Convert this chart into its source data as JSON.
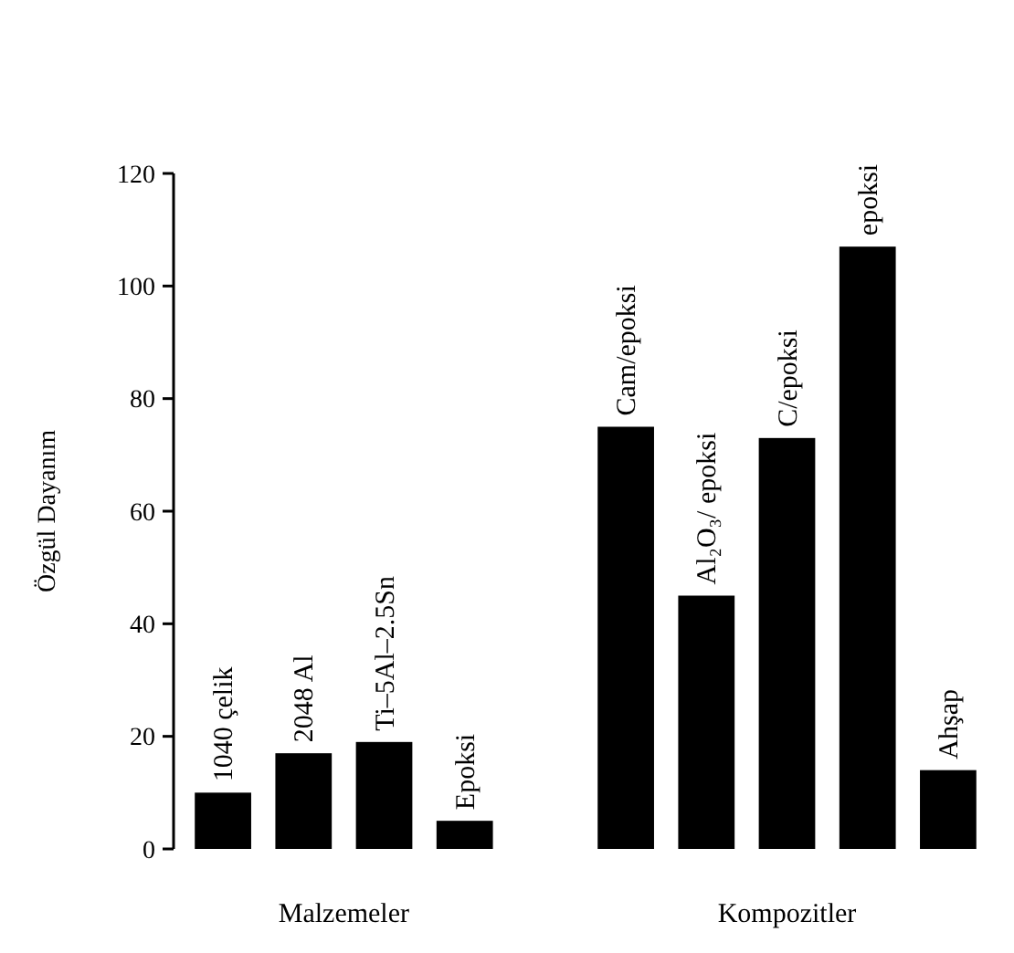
{
  "chart_data": {
    "type": "bar",
    "ylabel": "Özgül Dayanım",
    "categories": [
      "1040 çelik",
      "2048 Al",
      "Ti–5Al–2.5Sn",
      "Epoksi",
      null,
      "Cam/epoksi",
      "Al₂O₃/ epoksi",
      "C/epoksi",
      "epoksi",
      "Ahşap"
    ],
    "values": [
      10,
      17,
      19,
      5,
      null,
      75,
      45,
      73,
      107,
      14
    ],
    "color": "#000000",
    "ylim": [
      0,
      120
    ],
    "yticks": [
      0,
      20,
      40,
      60,
      80,
      100,
      120
    ],
    "annotations": [
      "Malzemeler",
      "Kompozitler"
    ]
  }
}
